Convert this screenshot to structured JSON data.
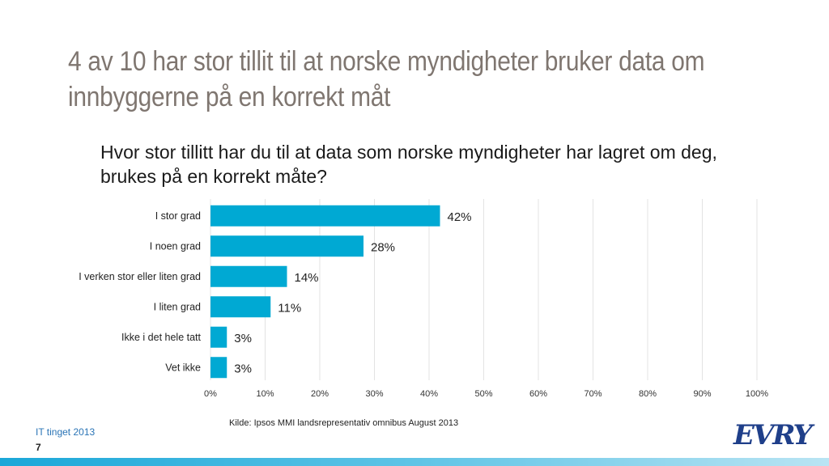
{
  "slide": {
    "title": "4 av 10 har stor tillit til at norske myndigheter bruker data om innbyggerne på en korrekt måt",
    "question": "Hvor stor tillitt har du til at data som norske myndigheter har lagret om deg, brukes på en korrekt måte?",
    "source": "Kilde: Ipsos MMI landsrepresentativ omnibus August 2013",
    "footer_left": "IT tinget 2013",
    "page_number": "7",
    "logo_text": "EVRY"
  },
  "chart_data": {
    "type": "bar",
    "orientation": "horizontal",
    "categories": [
      "I stor grad",
      "I noen grad",
      "I verken stor eller liten grad",
      "I liten grad",
      "Ikke i det hele tatt",
      "Vet ikke"
    ],
    "values": [
      42,
      28,
      14,
      11,
      3,
      3
    ],
    "value_labels": [
      "42%",
      "28%",
      "14%",
      "11%",
      "3%",
      "3%"
    ],
    "xlim": [
      0,
      100
    ],
    "xticks": [
      0,
      10,
      20,
      30,
      40,
      50,
      60,
      70,
      80,
      90,
      100
    ],
    "xtick_labels": [
      "0%",
      "10%",
      "20%",
      "30%",
      "40%",
      "50%",
      "60%",
      "70%",
      "80%",
      "90%",
      "100%"
    ],
    "bar_color": "#00a9d3",
    "grid": true,
    "legend": "none"
  },
  "colors": {
    "title": "#7f7670",
    "bar": "#00a9d3",
    "footer": "#2a74b6",
    "logo": "#1f3f8a"
  }
}
